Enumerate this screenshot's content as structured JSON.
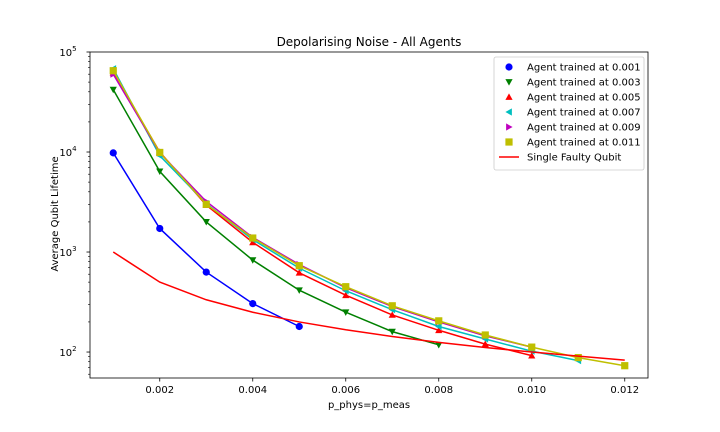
{
  "chart_data": {
    "type": "line",
    "title": "Depolarising Noise - All Agents",
    "xlabel": "p_phys=p_meas",
    "ylabel": "Average Qubit Lifetime",
    "xlim": [
      0.0005,
      0.0125
    ],
    "ylim": [
      55,
      100000
    ],
    "yscale": "log",
    "grid": false,
    "legend_position": "top-right",
    "xticks": [
      0.002,
      0.004,
      0.006,
      0.008,
      0.01,
      0.012
    ],
    "xtick_labels": [
      "0.002",
      "0.004",
      "0.006",
      "0.008",
      "0.010",
      "0.012"
    ],
    "yticks": [
      100,
      1000,
      10000,
      100000
    ],
    "ytick_labels": [
      {
        "base": "10",
        "exp": "2"
      },
      {
        "base": "10",
        "exp": "3"
      },
      {
        "base": "10",
        "exp": "4"
      },
      {
        "base": "10",
        "exp": "5"
      }
    ],
    "series": [
      {
        "name": "Agent trained at 0.001",
        "color": "#0000ff",
        "marker": "circle",
        "x": [
          0.001,
          0.002,
          0.003,
          0.004,
          0.005
        ],
        "y": [
          9800,
          1720,
          630,
          305,
          180
        ]
      },
      {
        "name": "Agent trained at 0.003",
        "color": "#008000",
        "marker": "triangle-down",
        "x": [
          0.001,
          0.002,
          0.003,
          0.004,
          0.005,
          0.006,
          0.007,
          0.008
        ],
        "y": [
          42000,
          6400,
          2000,
          830,
          415,
          250,
          160,
          118
        ]
      },
      {
        "name": "Agent trained at 0.005",
        "color": "#ff0000",
        "marker": "triangle-up",
        "x": [
          0.001,
          0.002,
          0.003,
          0.004,
          0.005,
          0.006,
          0.007,
          0.008,
          0.009,
          0.01
        ],
        "y": [
          62000,
          10000,
          2950,
          1250,
          620,
          370,
          235,
          165,
          120,
          92
        ]
      },
      {
        "name": "Agent trained at 0.007",
        "color": "#00bfbf",
        "marker": "triangle-left",
        "x": [
          0.001,
          0.002,
          0.003,
          0.004,
          0.005,
          0.006,
          0.007,
          0.008,
          0.009,
          0.01,
          0.011
        ],
        "y": [
          68000,
          9200,
          3050,
          1330,
          690,
          410,
          265,
          180,
          135,
          102,
          82
        ]
      },
      {
        "name": "Agent trained at 0.009",
        "color": "#bf00bf",
        "marker": "triangle-right",
        "x": [
          0.001,
          0.002,
          0.003,
          0.004,
          0.005,
          0.006,
          0.007,
          0.008,
          0.009,
          0.01
        ],
        "y": [
          60000,
          9800,
          3200,
          1400,
          750,
          440,
          285,
          200,
          145,
          112
        ]
      },
      {
        "name": "Agent trained at 0.011",
        "color": "#bfbf00",
        "marker": "square",
        "x": [
          0.001,
          0.002,
          0.003,
          0.004,
          0.005,
          0.006,
          0.007,
          0.008,
          0.009,
          0.01,
          0.011,
          0.012
        ],
        "y": [
          65000,
          9900,
          3000,
          1380,
          730,
          450,
          290,
          205,
          148,
          112,
          88,
          73
        ]
      },
      {
        "name": "Single Faulty Qubit",
        "color": "#ff0000",
        "marker": "none",
        "x": [
          0.001,
          0.002,
          0.003,
          0.004,
          0.005,
          0.006,
          0.007,
          0.008,
          0.009,
          0.01,
          0.011,
          0.012
        ],
        "y": [
          1000,
          500,
          333,
          250,
          200,
          167,
          143,
          125,
          111,
          100,
          91,
          83
        ]
      }
    ]
  }
}
